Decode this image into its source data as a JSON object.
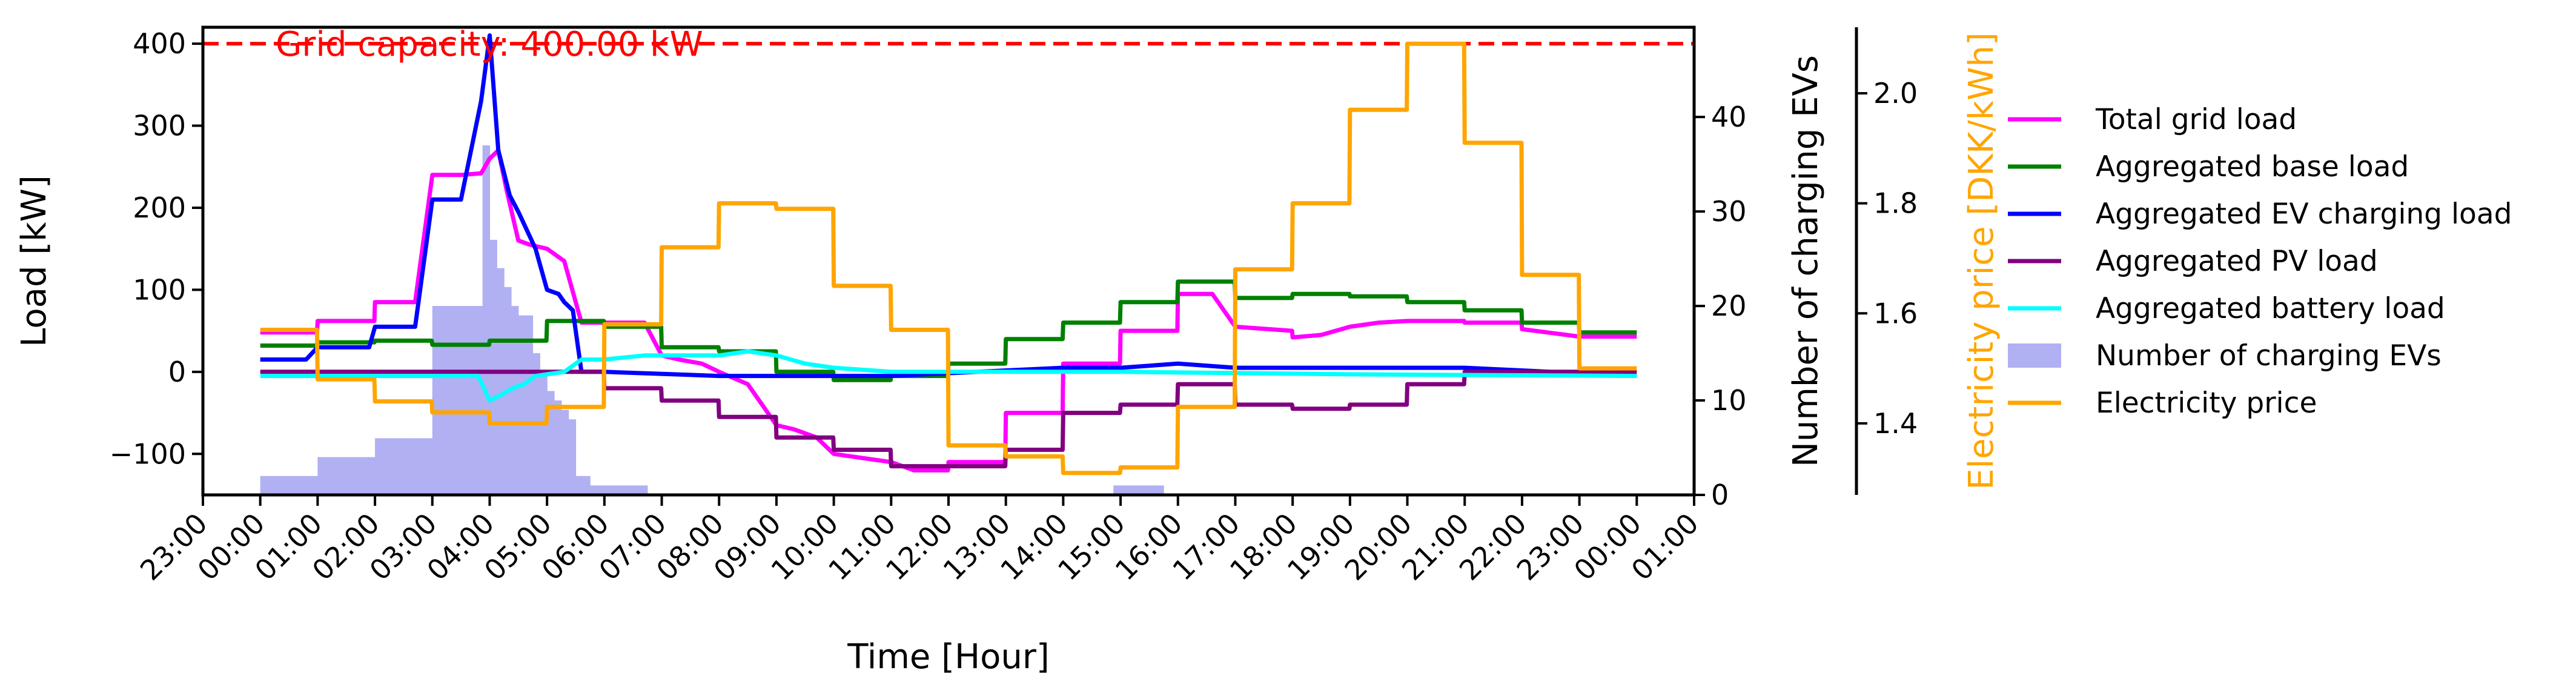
{
  "chart_data": {
    "type": "line",
    "xlabel": "Time [Hour]",
    "ylabel": "Load [kW]",
    "y2label": "Number of charging EVs",
    "y3label": "Electricity price [DKK/kWh]",
    "x_ticks": [
      "23:00",
      "00:00",
      "01:00",
      "02:00",
      "03:00",
      "04:00",
      "05:00",
      "06:00",
      "07:00",
      "08:00",
      "09:00",
      "10:00",
      "11:00",
      "12:00",
      "13:00",
      "14:00",
      "15:00",
      "16:00",
      "17:00",
      "18:00",
      "19:00",
      "20:00",
      "21:00",
      "22:00",
      "23:00",
      "00:00",
      "01:00"
    ],
    "xlim": [
      0,
      26
    ],
    "ylim": [
      -150,
      420
    ],
    "y_ticks": [
      400,
      300,
      200,
      100,
      0,
      -100
    ],
    "y2lim": [
      0,
      49.5
    ],
    "y2_ticks": [
      40,
      30,
      20,
      10,
      0
    ],
    "y3lim": [
      1.27,
      2.12
    ],
    "y3_ticks": [
      2.0,
      1.8,
      1.6,
      1.4
    ],
    "grid": false,
    "legend_position": "right",
    "capacity_line": {
      "value": 400,
      "label": "Grid capacity: 400.00 kW",
      "color": "#ff0000"
    },
    "series": [
      {
        "name": "Total grid load",
        "axis": "left",
        "color": "#ff00ff",
        "x": [
          1,
          1.99,
          2,
          2.99,
          3,
          3.7,
          4,
          4.5,
          4.85,
          5,
          5.15,
          5.3,
          5.5,
          5.7,
          6,
          6.3,
          6.6,
          7.7,
          8,
          8.3,
          8.7,
          9,
          9.5,
          10,
          10.3,
          10.7,
          11,
          11.5,
          12,
          12.4,
          12.99,
          13,
          13.99,
          14,
          14.99,
          15,
          15.99,
          16,
          16.99,
          17,
          17.6,
          18,
          18.99,
          19,
          19.5,
          20,
          20.5,
          21,
          21.99,
          22,
          22.99,
          23,
          24,
          25
        ],
        "values": [
          48,
          48,
          62,
          62,
          85,
          85,
          240,
          240,
          242,
          260,
          270,
          220,
          160,
          155,
          150,
          135,
          60,
          60,
          20,
          15,
          10,
          0,
          -15,
          -65,
          -70,
          -80,
          -100,
          -105,
          -110,
          -120,
          -120,
          -110,
          -110,
          -50,
          -50,
          10,
          10,
          50,
          50,
          95,
          95,
          55,
          50,
          42,
          45,
          55,
          60,
          62,
          62,
          60,
          60,
          52,
          43,
          43
        ]
      },
      {
        "name": "Aggregated base load",
        "axis": "left",
        "color": "#008000",
        "x": [
          1,
          1.99,
          2,
          2.99,
          3,
          3.99,
          4,
          4.99,
          5,
          5.99,
          6,
          6.99,
          7,
          7.99,
          8,
          8.99,
          9,
          9.99,
          10,
          10.99,
          11,
          11.99,
          12,
          12.99,
          13,
          13.99,
          14,
          14.99,
          15,
          15.99,
          16,
          16.99,
          17,
          17.99,
          18,
          18.99,
          19,
          19.99,
          20,
          20.99,
          21,
          21.99,
          22,
          22.99,
          23,
          23.99,
          24,
          25
        ],
        "values": [
          32,
          32,
          36,
          36,
          38,
          38,
          33,
          33,
          38,
          38,
          62,
          62,
          55,
          55,
          30,
          30,
          25,
          25,
          0,
          0,
          -10,
          -10,
          -5,
          -5,
          10,
          10,
          40,
          40,
          60,
          60,
          85,
          85,
          110,
          110,
          90,
          90,
          95,
          95,
          92,
          92,
          85,
          85,
          75,
          75,
          60,
          60,
          48,
          48
        ]
      },
      {
        "name": "Aggregated EV charging load",
        "axis": "left",
        "color": "#0000ff",
        "x": [
          1,
          1.8,
          2,
          2.9,
          3,
          3.7,
          4,
          4.5,
          4.85,
          5,
          5.15,
          5.35,
          5.5,
          5.8,
          6,
          6.2,
          6.3,
          6.45,
          6.6,
          7,
          9,
          12,
          15,
          16,
          17,
          18,
          19,
          22,
          25
        ],
        "values": [
          15,
          15,
          30,
          30,
          55,
          55,
          210,
          210,
          330,
          410,
          270,
          215,
          195,
          150,
          100,
          95,
          85,
          75,
          0,
          0,
          -5,
          -5,
          5,
          5,
          10,
          5,
          5,
          5,
          -5
        ]
      },
      {
        "name": "Aggregated PV load",
        "axis": "left",
        "color": "#800080",
        "x": [
          1,
          6.99,
          7,
          7.99,
          8,
          8.99,
          9,
          9.99,
          10,
          10.99,
          11,
          11.99,
          12,
          12.99,
          13,
          13.99,
          14,
          14.99,
          15,
          15.99,
          16,
          16.99,
          17,
          17.99,
          18,
          18.99,
          19,
          19.99,
          20,
          20.99,
          21,
          21.99,
          22,
          25
        ],
        "values": [
          0,
          0,
          -20,
          -20,
          -35,
          -35,
          -55,
          -55,
          -80,
          -80,
          -95,
          -95,
          -115,
          -115,
          -115,
          -115,
          -95,
          -95,
          -50,
          -50,
          -40,
          -40,
          -15,
          -15,
          -40,
          -40,
          -45,
          -45,
          -40,
          -40,
          -15,
          -15,
          0,
          0
        ]
      },
      {
        "name": "Aggregated battery load",
        "axis": "left",
        "color": "#00ffff",
        "x": [
          1,
          4,
          4.8,
          5,
          5.2,
          5.4,
          5.6,
          5.8,
          6,
          6.3,
          6.6,
          7,
          7.7,
          8,
          9,
          9.5,
          10,
          10.5,
          11,
          12,
          13,
          16,
          20,
          25
        ],
        "values": [
          -5,
          -5,
          -5,
          -35,
          -28,
          -20,
          -15,
          -5,
          -3,
          0,
          15,
          15,
          20,
          20,
          20,
          25,
          20,
          10,
          5,
          0,
          0,
          0,
          -3,
          -5
        ]
      },
      {
        "name": "Number of charging EVs",
        "axis": "right",
        "color": "#b0b0f2",
        "type": "bar",
        "bar_width": 0.125,
        "x": [
          1.0625,
          1.1875,
          1.3125,
          1.4375,
          1.5625,
          1.6875,
          1.8125,
          1.9375,
          2.0625,
          2.1875,
          2.3125,
          2.4375,
          2.5625,
          2.6875,
          2.8125,
          2.9375,
          3.0625,
          3.1875,
          3.3125,
          3.4375,
          3.5625,
          3.6875,
          3.8125,
          3.9375,
          4.0625,
          4.1875,
          4.3125,
          4.4375,
          4.5625,
          4.6875,
          4.8125,
          4.9375,
          5.0625,
          5.1875,
          5.3125,
          5.4375,
          5.5625,
          5.6875,
          5.8125,
          5.9375,
          6.0625,
          6.1875,
          6.3125,
          6.4375,
          6.5625,
          6.6875,
          6.8125,
          6.9375,
          7.0625,
          7.1875,
          7.3125,
          7.4375,
          7.5625,
          7.6875,
          15.9375,
          16.0625,
          16.1875,
          16.3125,
          16.4375,
          16.5625,
          16.6875
        ],
        "values": [
          2,
          2,
          2,
          2,
          2,
          2,
          2,
          2,
          4,
          4,
          4,
          4,
          4,
          4,
          4,
          4,
          6,
          6,
          6,
          6,
          6,
          6,
          6,
          6,
          20,
          20,
          20,
          20,
          20,
          20,
          20,
          37,
          27,
          24,
          22,
          20,
          19,
          19,
          15,
          13,
          11,
          10,
          9,
          8,
          2,
          2,
          1,
          1,
          1,
          1,
          1,
          1,
          1,
          1,
          1,
          1,
          1,
          1,
          1,
          1,
          1
        ]
      },
      {
        "name": "Electricity price",
        "axis": "far-right",
        "color": "#ffa500",
        "x": [
          1,
          1.99,
          2,
          2.99,
          3,
          3.99,
          4,
          4.99,
          5,
          5.99,
          6,
          6.99,
          7,
          7.99,
          8,
          8.99,
          9,
          9.99,
          10,
          10.99,
          11,
          11.99,
          12,
          12.99,
          13,
          13.99,
          14,
          14.99,
          15,
          15.99,
          16,
          16.99,
          17,
          17.99,
          18,
          18.99,
          19,
          19.99,
          20,
          20.99,
          21,
          21.99,
          22,
          22.99,
          23,
          23.99,
          24,
          25
        ],
        "values": [
          1.57,
          1.57,
          1.48,
          1.48,
          1.44,
          1.44,
          1.42,
          1.42,
          1.4,
          1.4,
          1.43,
          1.43,
          1.58,
          1.58,
          1.72,
          1.72,
          1.8,
          1.8,
          1.79,
          1.79,
          1.65,
          1.65,
          1.57,
          1.57,
          1.36,
          1.36,
          1.34,
          1.34,
          1.31,
          1.31,
          1.32,
          1.32,
          1.43,
          1.43,
          1.68,
          1.68,
          1.8,
          1.8,
          1.97,
          1.97,
          2.09,
          2.09,
          1.91,
          1.91,
          1.67,
          1.67,
          1.5,
          1.5
        ]
      }
    ]
  }
}
